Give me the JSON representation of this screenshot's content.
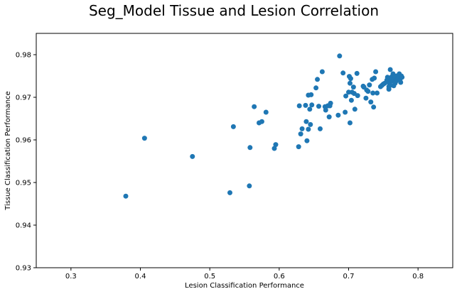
{
  "chart_data": {
    "type": "scatter",
    "title": "Seg_Model Tissue and Lesion Correlation",
    "xlabel": "Lesion Classification Performance",
    "ylabel": "Tissue Classification Performance",
    "xlim": [
      0.25,
      0.85
    ],
    "ylim": [
      0.93,
      0.985
    ],
    "xticks": [
      0.3,
      0.4,
      0.5,
      0.6,
      0.7,
      0.8
    ],
    "xtick_labels": [
      "0.3",
      "0.4",
      "0.5",
      "0.6",
      "0.7",
      "0.8"
    ],
    "yticks": [
      0.93,
      0.94,
      0.95,
      0.96,
      0.97,
      0.98
    ],
    "ytick_labels": [
      "0.93",
      "0.94",
      "0.95",
      "0.96",
      "0.97",
      "0.98"
    ],
    "grid": false,
    "legend": "none",
    "marker_color": "#1f77b4",
    "points": [
      [
        0.379,
        0.9468
      ],
      [
        0.406,
        0.9604
      ],
      [
        0.475,
        0.9561
      ],
      [
        0.529,
        0.9476
      ],
      [
        0.534,
        0.9631
      ],
      [
        0.557,
        0.9492
      ],
      [
        0.558,
        0.9582
      ],
      [
        0.564,
        0.9678
      ],
      [
        0.571,
        0.964
      ],
      [
        0.575,
        0.9643
      ],
      [
        0.581,
        0.9665
      ],
      [
        0.593,
        0.958
      ],
      [
        0.595,
        0.9589
      ],
      [
        0.628,
        0.9584
      ],
      [
        0.629,
        0.968
      ],
      [
        0.631,
        0.9614
      ],
      [
        0.633,
        0.9626
      ],
      [
        0.638,
        0.9681
      ],
      [
        0.639,
        0.9643
      ],
      [
        0.64,
        0.9598
      ],
      [
        0.642,
        0.9625
      ],
      [
        0.642,
        0.9705
      ],
      [
        0.644,
        0.9672
      ],
      [
        0.645,
        0.9636
      ],
      [
        0.646,
        0.9706
      ],
      [
        0.647,
        0.9682
      ],
      [
        0.653,
        0.9722
      ],
      [
        0.655,
        0.9742
      ],
      [
        0.657,
        0.9679
      ],
      [
        0.659,
        0.9626
      ],
      [
        0.662,
        0.976
      ],
      [
        0.666,
        0.9678
      ],
      [
        0.667,
        0.967
      ],
      [
        0.67,
        0.968
      ],
      [
        0.672,
        0.9654
      ],
      [
        0.673,
        0.968
      ],
      [
        0.674,
        0.9686
      ],
      [
        0.685,
        0.9658
      ],
      [
        0.687,
        0.9797
      ],
      [
        0.692,
        0.9757
      ],
      [
        0.695,
        0.9665
      ],
      [
        0.696,
        0.9703
      ],
      [
        0.7,
        0.9712
      ],
      [
        0.701,
        0.9749
      ],
      [
        0.702,
        0.9733
      ],
      [
        0.702,
        0.964
      ],
      [
        0.703,
        0.9744
      ],
      [
        0.704,
        0.9693
      ],
      [
        0.705,
        0.9712
      ],
      [
        0.707,
        0.9724
      ],
      [
        0.708,
        0.9709
      ],
      [
        0.709,
        0.9672
      ],
      [
        0.712,
        0.9756
      ],
      [
        0.713,
        0.9704
      ],
      [
        0.721,
        0.9726
      ],
      [
        0.722,
        0.9724
      ],
      [
        0.725,
        0.9698
      ],
      [
        0.726,
        0.9717
      ],
      [
        0.728,
        0.9714
      ],
      [
        0.73,
        0.9729
      ],
      [
        0.732,
        0.9689
      ],
      [
        0.734,
        0.9742
      ],
      [
        0.735,
        0.971
      ],
      [
        0.736,
        0.9677
      ],
      [
        0.737,
        0.9745
      ],
      [
        0.739,
        0.976
      ],
      [
        0.741,
        0.971
      ],
      [
        0.746,
        0.9725
      ],
      [
        0.748,
        0.9728
      ],
      [
        0.75,
        0.9731
      ],
      [
        0.752,
        0.9733
      ],
      [
        0.755,
        0.974
      ],
      [
        0.756,
        0.9747
      ],
      [
        0.757,
        0.9737
      ],
      [
        0.758,
        0.9725
      ],
      [
        0.758,
        0.9719
      ],
      [
        0.759,
        0.9732
      ],
      [
        0.76,
        0.9728
      ],
      [
        0.76,
        0.9765
      ],
      [
        0.761,
        0.9741
      ],
      [
        0.762,
        0.9748
      ],
      [
        0.763,
        0.9738
      ],
      [
        0.764,
        0.9755
      ],
      [
        0.765,
        0.9727
      ],
      [
        0.766,
        0.9742
      ],
      [
        0.767,
        0.9733
      ],
      [
        0.768,
        0.9745
      ],
      [
        0.768,
        0.9737
      ],
      [
        0.769,
        0.975
      ],
      [
        0.77,
        0.9742
      ],
      [
        0.771,
        0.9745
      ],
      [
        0.772,
        0.9748
      ],
      [
        0.773,
        0.9755
      ],
      [
        0.774,
        0.974
      ],
      [
        0.775,
        0.9735
      ],
      [
        0.776,
        0.975
      ],
      [
        0.777,
        0.9747
      ]
    ]
  }
}
